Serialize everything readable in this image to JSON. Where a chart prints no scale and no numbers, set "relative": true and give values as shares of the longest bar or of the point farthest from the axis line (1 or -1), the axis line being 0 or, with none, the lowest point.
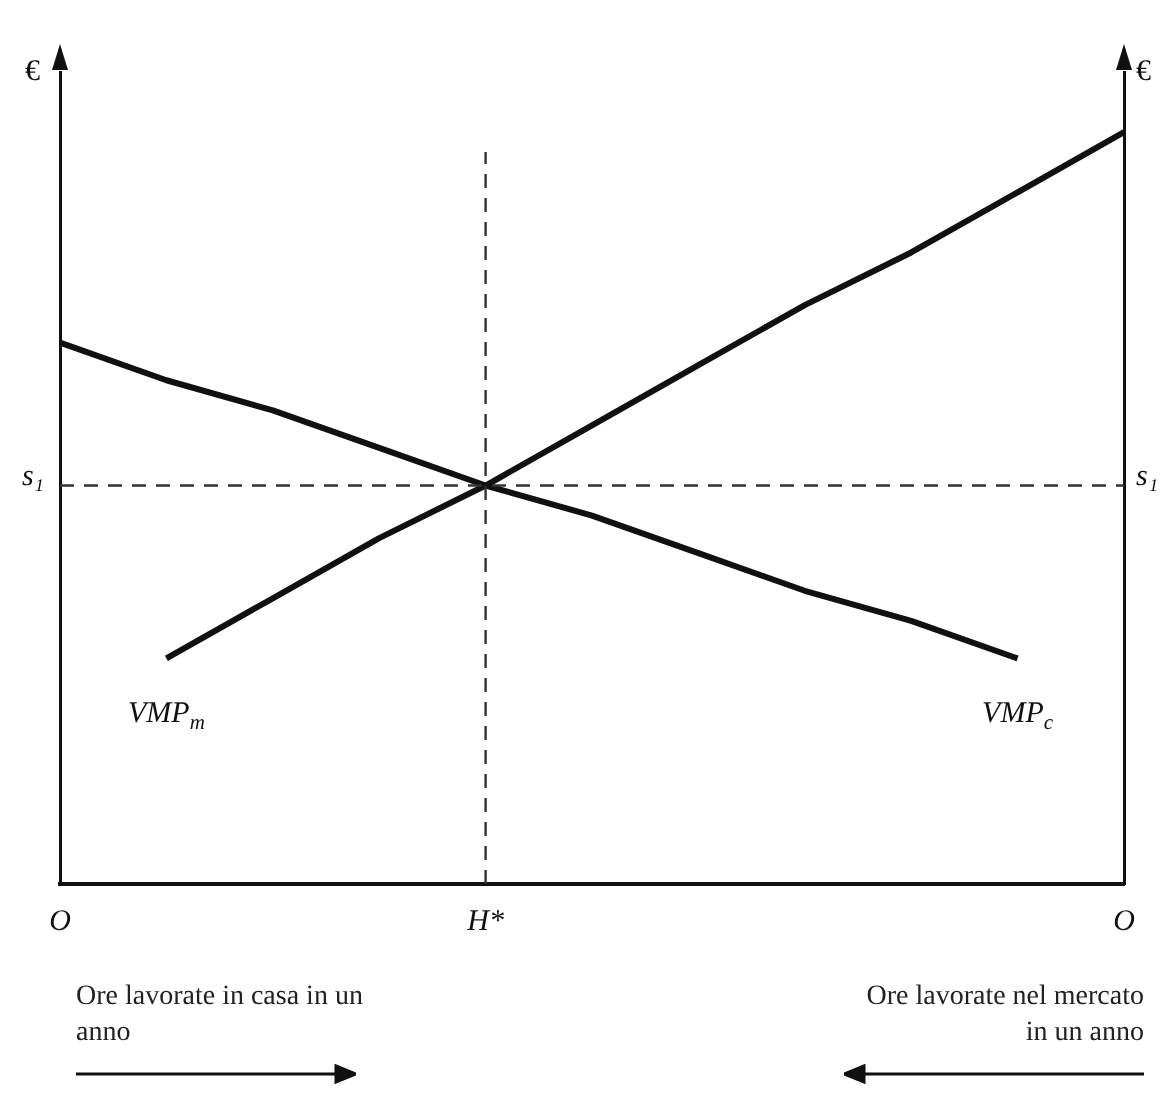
{
  "chart_data": {
    "type": "line",
    "relative": true,
    "ylabel": "€",
    "y2label": "€",
    "categories": [
      "O",
      null,
      null,
      null,
      "H*",
      null,
      null,
      null,
      null,
      null,
      "O"
    ],
    "series": [
      {
        "name": "VMP$_{m}$",
        "color": "#111111",
        "values": [
          null,
          0.3,
          0.38,
          0.46,
          0.53,
          0.61,
          0.69,
          0.77,
          0.84,
          0.92,
          1
        ]
      },
      {
        "name": "VMP$_{c}$",
        "color": "#111111",
        "values": [
          0.72,
          0.67,
          0.63,
          0.58,
          0.53,
          0.49,
          0.44,
          0.39,
          0.35,
          0.3,
          null
        ]
      }
    ],
    "ref_lines": [
      {
        "axis": "y",
        "value": 0.53,
        "label": "s₁",
        "line_style": "dashed"
      },
      {
        "axis": "x",
        "value": "H*",
        "line_style": "dashed"
      }
    ],
    "annotations": [
      "Ore lavorate in casa in un anno",
      "Ore lavorate nel mercato in un anno"
    ],
    "marker": "none",
    "line_style": "solid",
    "grid": false,
    "legend": false
  }
}
